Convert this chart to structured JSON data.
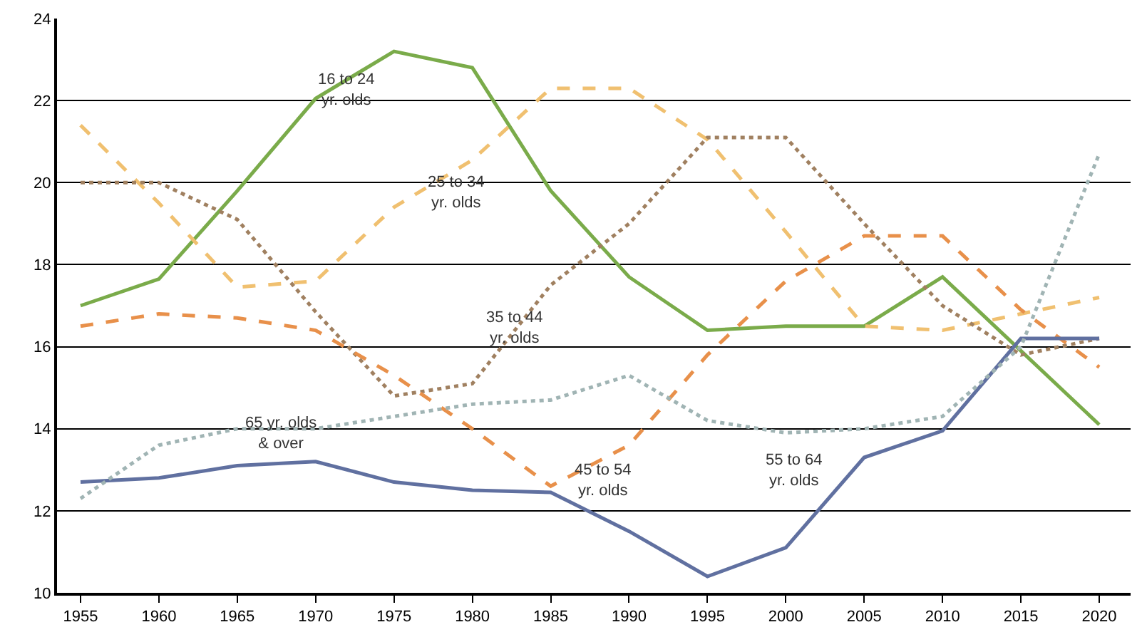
{
  "chart_data": {
    "type": "line",
    "x": [
      1955,
      1960,
      1965,
      1970,
      1975,
      1980,
      1985,
      1990,
      1995,
      2000,
      2005,
      2010,
      2015,
      2020
    ],
    "series": [
      {
        "name": "16 to 24\nyr. olds",
        "color": "#7aab4a",
        "line_style": "solid",
        "values": [
          17.0,
          17.65,
          19.8,
          22.05,
          23.2,
          22.8,
          19.8,
          17.7,
          16.4,
          16.5,
          16.5,
          17.7,
          15.9,
          14.1
        ]
      },
      {
        "name": "25 to 34\nyr. olds",
        "color": "#f0c070",
        "line_style": "dashed",
        "values": [
          21.4,
          19.5,
          17.45,
          17.6,
          19.4,
          20.55,
          22.3,
          22.3,
          21.05,
          18.8,
          16.5,
          16.4,
          16.8,
          17.2
        ]
      },
      {
        "name": "35 to 44\nyr. olds",
        "color": "#a08060",
        "line_style": "dotted",
        "values": [
          20.0,
          20.0,
          19.1,
          16.85,
          14.8,
          15.1,
          17.5,
          19.0,
          21.1,
          21.1,
          19.0,
          17.0,
          15.8,
          16.2
        ]
      },
      {
        "name": "45 to 54\nyr. olds",
        "color": "#e8904a",
        "line_style": "dashed",
        "values": [
          16.5,
          16.8,
          16.7,
          16.4,
          15.3,
          14.0,
          12.6,
          13.6,
          15.8,
          17.6,
          18.7,
          18.7,
          16.9,
          15.5
        ]
      },
      {
        "name": "55 to 64\nyr. olds",
        "color": "#6070a0",
        "line_style": "solid",
        "values": [
          12.7,
          12.8,
          13.1,
          13.2,
          12.7,
          12.5,
          12.45,
          11.5,
          10.4,
          11.1,
          13.3,
          13.95,
          16.2,
          16.2
        ]
      },
      {
        "name": "65 yr. olds\n& over",
        "color": "#a0b4b4",
        "line_style": "dotted",
        "values": [
          12.3,
          13.6,
          14.0,
          14.0,
          14.3,
          14.6,
          14.7,
          15.3,
          14.2,
          13.9,
          14.0,
          14.3,
          16.0,
          20.7
        ]
      }
    ],
    "xlim": [
      1953.5,
      2022
    ],
    "xticks": [
      1955,
      1960,
      1965,
      1970,
      1975,
      1980,
      1985,
      1990,
      1995,
      2000,
      2005,
      2010,
      2015,
      2020
    ],
    "ylim": [
      10,
      24
    ],
    "yticks": [
      10,
      12,
      14,
      16,
      18,
      20,
      22,
      24
    ],
    "grid": "y",
    "legend": false,
    "marker": "none"
  }
}
